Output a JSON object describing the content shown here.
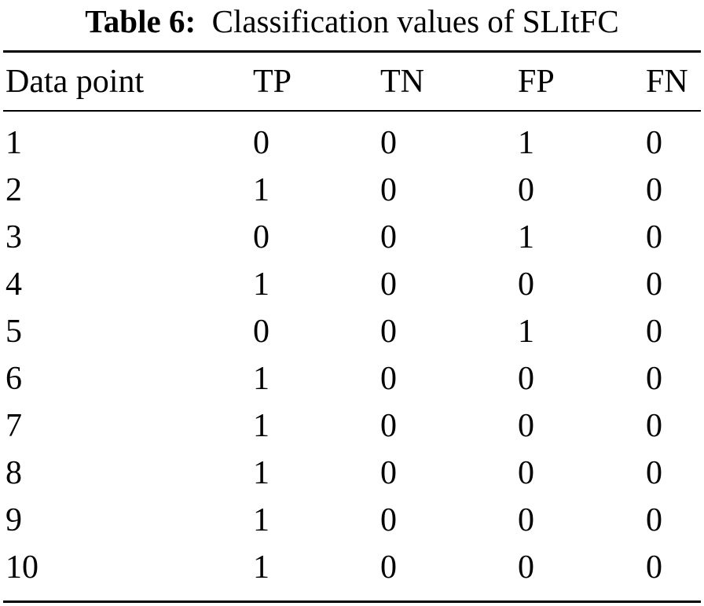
{
  "caption": {
    "label": "Table 6:",
    "text": "Classification values of SLItFC"
  },
  "table": {
    "headers": [
      "Data point",
      "TP",
      "TN",
      "FP",
      "FN"
    ],
    "rows": [
      [
        "1",
        "0",
        "0",
        "1",
        "0"
      ],
      [
        "2",
        "1",
        "0",
        "0",
        "0"
      ],
      [
        "3",
        "0",
        "0",
        "1",
        "0"
      ],
      [
        "4",
        "1",
        "0",
        "0",
        "0"
      ],
      [
        "5",
        "0",
        "0",
        "1",
        "0"
      ],
      [
        "6",
        "1",
        "0",
        "0",
        "0"
      ],
      [
        "7",
        "1",
        "0",
        "0",
        "0"
      ],
      [
        "8",
        "1",
        "0",
        "0",
        "0"
      ],
      [
        "9",
        "1",
        "0",
        "0",
        "0"
      ],
      [
        "10",
        "1",
        "0",
        "0",
        "0"
      ]
    ]
  }
}
